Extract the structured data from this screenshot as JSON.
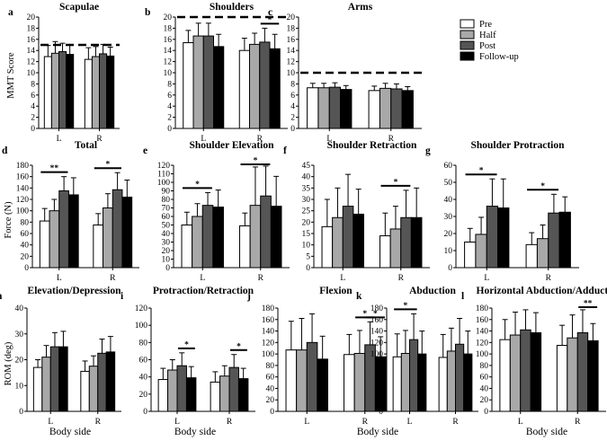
{
  "legend": {
    "entries": [
      "Pre",
      "Half",
      "Post",
      "Follow-up"
    ],
    "colors": [
      "#ffffff",
      "#a8a8a8",
      "#555555",
      "#000000"
    ]
  },
  "x_label": "Body side",
  "chart_data": [
    {
      "id": "a",
      "type": "bar",
      "title": "Scapulae",
      "ylabel": "MMT Score",
      "categories": [
        "L",
        "R"
      ],
      "ylim": [
        0,
        20
      ],
      "yticks": [
        0,
        2,
        4,
        6,
        8,
        10,
        12,
        14,
        16,
        18,
        20
      ],
      "ref_line": 15,
      "series": [
        {
          "name": "Pre",
          "values": [
            12.9,
            12.4
          ],
          "errors": [
            2.0,
            2.1
          ]
        },
        {
          "name": "Half",
          "values": [
            13.5,
            12.9
          ],
          "errors": [
            2.1,
            1.8
          ]
        },
        {
          "name": "Post",
          "values": [
            13.8,
            13.4
          ],
          "errors": [
            1.5,
            1.7
          ]
        },
        {
          "name": "Follow-up",
          "values": [
            13.3,
            13.0
          ],
          "errors": [
            1.7,
            1.6
          ]
        }
      ],
      "sig": []
    },
    {
      "id": "b",
      "type": "bar",
      "title": "Shoulders",
      "ylabel": "",
      "categories": [
        "L",
        "R"
      ],
      "ylim": [
        0,
        20
      ],
      "yticks": [
        0,
        2,
        4,
        6,
        8,
        10,
        12,
        14,
        16,
        18,
        20
      ],
      "ref_line": 20,
      "series": [
        {
          "name": "Pre",
          "values": [
            15.4,
            14.0
          ],
          "errors": [
            2.2,
            2.2
          ]
        },
        {
          "name": "Half",
          "values": [
            16.6,
            15.1
          ],
          "errors": [
            2.3,
            2.0
          ]
        },
        {
          "name": "Post",
          "values": [
            16.6,
            15.5
          ],
          "errors": [
            2.3,
            2.5
          ]
        },
        {
          "name": "Follow-up",
          "values": [
            14.7,
            14.3
          ],
          "errors": [
            2.2,
            2.6
          ]
        }
      ],
      "sig": [
        {
          "cat": 1,
          "from": 2,
          "to": 3,
          "label": "*"
        }
      ]
    },
    {
      "id": "c",
      "type": "bar",
      "title": "Arms",
      "ylabel": "",
      "categories": [
        "L",
        "R"
      ],
      "ylim": [
        0,
        20
      ],
      "yticks": [
        0,
        2,
        4,
        6,
        8,
        10,
        12,
        14,
        16,
        18,
        20
      ],
      "ref_line": 10,
      "series": [
        {
          "name": "Pre",
          "values": [
            7.3,
            6.8
          ],
          "errors": [
            0.8,
            0.8
          ]
        },
        {
          "name": "Half",
          "values": [
            7.3,
            7.2
          ],
          "errors": [
            0.8,
            0.9
          ]
        },
        {
          "name": "Post",
          "values": [
            7.4,
            7.1
          ],
          "errors": [
            0.8,
            0.9
          ]
        },
        {
          "name": "Follow-up",
          "values": [
            7.0,
            6.8
          ],
          "errors": [
            0.7,
            0.7
          ]
        }
      ],
      "sig": []
    },
    {
      "id": "d",
      "type": "bar",
      "title": "Total",
      "ylabel": "Force (N)",
      "categories": [
        "L",
        "R"
      ],
      "ylim": [
        0,
        180
      ],
      "yticks": [
        0,
        20,
        40,
        60,
        80,
        100,
        120,
        140,
        160,
        180
      ],
      "ref_line": null,
      "series": [
        {
          "name": "Pre",
          "values": [
            82,
            75
          ],
          "errors": [
            22,
            20
          ]
        },
        {
          "name": "Half",
          "values": [
            100,
            105
          ],
          "errors": [
            20,
            25
          ]
        },
        {
          "name": "Post",
          "values": [
            135,
            137
          ],
          "errors": [
            25,
            30
          ]
        },
        {
          "name": "Follow-up",
          "values": [
            128,
            124
          ],
          "errors": [
            30,
            30
          ]
        }
      ],
      "sig": [
        {
          "cat": 0,
          "from": 0,
          "to": 2,
          "label": "**"
        },
        {
          "cat": 1,
          "from": 0,
          "to": 2,
          "label": "*"
        }
      ]
    },
    {
      "id": "e",
      "type": "bar",
      "title": "Shoulder Elevation",
      "ylabel": "",
      "categories": [
        "L",
        "R"
      ],
      "ylim": [
        0,
        120
      ],
      "yticks": [
        0,
        10,
        20,
        30,
        40,
        50,
        60,
        70,
        80,
        90,
        100,
        110,
        120
      ],
      "ref_line": null,
      "series": [
        {
          "name": "Pre",
          "values": [
            50,
            49
          ],
          "errors": [
            15,
            15
          ]
        },
        {
          "name": "Half",
          "values": [
            60,
            73
          ],
          "errors": [
            15,
            45
          ]
        },
        {
          "name": "Post",
          "values": [
            73,
            84
          ],
          "errors": [
            15,
            35
          ]
        },
        {
          "name": "Follow-up",
          "values": [
            71,
            72
          ],
          "errors": [
            20,
            35
          ]
        }
      ],
      "sig": [
        {
          "cat": 0,
          "from": 0,
          "to": 2,
          "label": "*"
        },
        {
          "cat": 1,
          "from": 0,
          "to": 2,
          "label": "*"
        }
      ]
    },
    {
      "id": "f",
      "type": "bar",
      "title": "Shoulder Retraction",
      "ylabel": "",
      "categories": [
        "L",
        "R"
      ],
      "ylim": [
        0,
        45
      ],
      "yticks": [
        0,
        5,
        10,
        15,
        20,
        25,
        30,
        35,
        40,
        45
      ],
      "ref_line": null,
      "series": [
        {
          "name": "Pre",
          "values": [
            18,
            14
          ],
          "errors": [
            12,
            10
          ]
        },
        {
          "name": "Half",
          "values": [
            22,
            17
          ],
          "errors": [
            13,
            10
          ]
        },
        {
          "name": "Post",
          "values": [
            27,
            22
          ],
          "errors": [
            14,
            12
          ]
        },
        {
          "name": "Follow-up",
          "values": [
            23.5,
            22
          ],
          "errors": [
            11,
            13
          ]
        }
      ],
      "sig": [
        {
          "cat": 1,
          "from": 0,
          "to": 2,
          "label": "*"
        }
      ]
    },
    {
      "id": "g",
      "type": "bar",
      "title": "Shoulder Protraction",
      "ylabel": "",
      "categories": [
        "L",
        "R"
      ],
      "ylim": [
        0,
        60
      ],
      "yticks": [
        0,
        10,
        20,
        30,
        40,
        50,
        60
      ],
      "ref_line": null,
      "series": [
        {
          "name": "Pre",
          "values": [
            15,
            13.5
          ],
          "errors": [
            8,
            7
          ]
        },
        {
          "name": "Half",
          "values": [
            19.5,
            17
          ],
          "errors": [
            10,
            8
          ]
        },
        {
          "name": "Post",
          "values": [
            36,
            32
          ],
          "errors": [
            16,
            11
          ]
        },
        {
          "name": "Follow-up",
          "values": [
            35,
            32.5
          ],
          "errors": [
            17,
            9
          ]
        }
      ],
      "sig": [
        {
          "cat": 0,
          "from": 0,
          "to": 2,
          "label": "*"
        },
        {
          "cat": 1,
          "from": 0,
          "to": 2,
          "label": "*"
        }
      ]
    },
    {
      "id": "h",
      "type": "bar",
      "title": "Elevation/Depression",
      "ylabel": "ROM (deg)",
      "categories": [
        "L",
        "R"
      ],
      "ylim": [
        0,
        40
      ],
      "yticks": [
        0,
        10,
        20,
        30,
        40
      ],
      "ref_line": null,
      "series": [
        {
          "name": "Pre",
          "values": [
            17,
            15.5
          ],
          "errors": [
            3,
            4
          ]
        },
        {
          "name": "Half",
          "values": [
            21,
            17.5
          ],
          "errors": [
            4.5,
            4
          ]
        },
        {
          "name": "Post",
          "values": [
            25,
            22.5
          ],
          "errors": [
            5.5,
            5.5
          ]
        },
        {
          "name": "Follow-up",
          "values": [
            25,
            23
          ],
          "errors": [
            6,
            6
          ]
        }
      ],
      "sig": []
    },
    {
      "id": "i",
      "type": "bar",
      "title": "Protraction/Retraction",
      "ylabel": "",
      "categories": [
        "L",
        "R"
      ],
      "ylim": [
        0,
        120
      ],
      "yticks": [
        0,
        20,
        40,
        60,
        80,
        100,
        120
      ],
      "ref_line": null,
      "series": [
        {
          "name": "Pre",
          "values": [
            37,
            34
          ],
          "errors": [
            13,
            12
          ]
        },
        {
          "name": "Half",
          "values": [
            48,
            41
          ],
          "errors": [
            12,
            12
          ]
        },
        {
          "name": "Post",
          "values": [
            53,
            51
          ],
          "errors": [
            15,
            15
          ]
        },
        {
          "name": "Follow-up",
          "values": [
            39,
            38
          ],
          "errors": [
            13,
            12
          ]
        }
      ],
      "sig": [
        {
          "cat": 0,
          "from": 2,
          "to": 3,
          "label": "*"
        },
        {
          "cat": 1,
          "from": 2,
          "to": 3,
          "label": "*"
        }
      ]
    },
    {
      "id": "j",
      "type": "bar",
      "title": "Flexion",
      "ylabel": "",
      "categories": [
        "L",
        "R"
      ],
      "ylim": [
        0,
        180
      ],
      "yticks": [
        0,
        20,
        40,
        60,
        80,
        100,
        120,
        140,
        160,
        180
      ],
      "ref_line": null,
      "series": [
        {
          "name": "Pre",
          "values": [
            107,
            99
          ],
          "errors": [
            50,
            35
          ]
        },
        {
          "name": "Half",
          "values": [
            107,
            101
          ],
          "errors": [
            55,
            40
          ]
        },
        {
          "name": "Post",
          "values": [
            120,
            116
          ],
          "errors": [
            50,
            40
          ]
        },
        {
          "name": "Follow-up",
          "values": [
            91,
            95
          ],
          "errors": [
            40,
            35
          ]
        }
      ],
      "sig": [
        {
          "cat": 1,
          "from": 1,
          "to": 2,
          "label": "*"
        },
        {
          "cat": 1,
          "from": 2,
          "to": 3,
          "label": "*"
        }
      ]
    },
    {
      "id": "k",
      "type": "bar",
      "title": "Abduction",
      "ylabel": "",
      "categories": [
        "L",
        "R"
      ],
      "ylim": [
        0,
        180
      ],
      "yticks": [
        0,
        20,
        40,
        60,
        80,
        100,
        120,
        140,
        160,
        180
      ],
      "ref_line": null,
      "series": [
        {
          "name": "Pre",
          "values": [
            95,
            94
          ],
          "errors": [
            40,
            40
          ]
        },
        {
          "name": "Half",
          "values": [
            101,
            105
          ],
          "errors": [
            40,
            40
          ]
        },
        {
          "name": "Post",
          "values": [
            125,
            117
          ],
          "errors": [
            45,
            45
          ]
        },
        {
          "name": "Follow-up",
          "values": [
            100,
            100
          ],
          "errors": [
            40,
            40
          ]
        }
      ],
      "sig": [
        {
          "cat": 0,
          "from": 0,
          "to": 2,
          "label": "*"
        }
      ]
    },
    {
      "id": "l",
      "type": "bar",
      "title": "Horizontal Abduction/Adduction",
      "ylabel": "",
      "categories": [
        "L",
        "R"
      ],
      "ylim": [
        0,
        180
      ],
      "yticks": [
        0,
        20,
        40,
        60,
        80,
        100,
        120,
        140,
        160,
        180
      ],
      "ref_line": null,
      "series": [
        {
          "name": "Pre",
          "values": [
            125,
            115
          ],
          "errors": [
            35,
            35
          ]
        },
        {
          "name": "Half",
          "values": [
            133,
            128
          ],
          "errors": [
            40,
            40
          ]
        },
        {
          "name": "Post",
          "values": [
            142,
            137
          ],
          "errors": [
            35,
            40
          ]
        },
        {
          "name": "Follow-up",
          "values": [
            137,
            123
          ],
          "errors": [
            35,
            30
          ]
        }
      ],
      "sig": [
        {
          "cat": 1,
          "from": 2,
          "to": 3,
          "label": "**"
        }
      ]
    }
  ]
}
